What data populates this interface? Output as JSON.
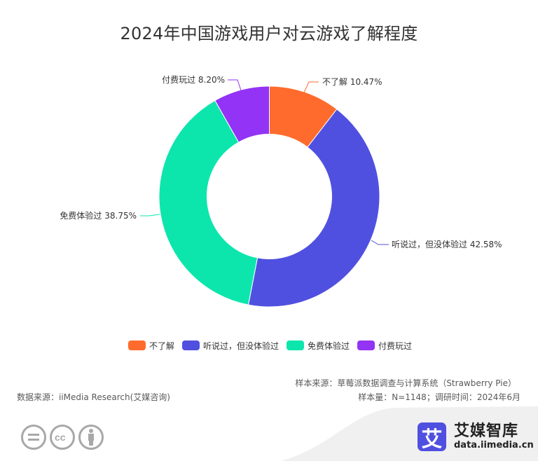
{
  "title": "2024年中国游戏用户对云游戏了解程度",
  "chart_data": {
    "type": "pie",
    "variant": "donut",
    "title": "2024年中国游戏用户对云游戏了解程度",
    "categories": [
      "不了解",
      "听说过，但没体验过",
      "免费体验过",
      "付费玩过"
    ],
    "values": [
      10.47,
      42.58,
      38.75,
      8.2
    ],
    "unit": "%",
    "colors": [
      "#ff6b2c",
      "#5050e0",
      "#0ce6ad",
      "#9333f5"
    ],
    "labels": [
      "不了解 10.47%",
      "听说过，但没体验过 42.58%",
      "免费体验过 38.75%",
      "付费玩过 8.20%"
    ],
    "start_angle": "12 o'clock",
    "direction": "clockwise",
    "legend_position": "bottom"
  },
  "legend": [
    {
      "label": "不了解",
      "color": "#ff6b2c"
    },
    {
      "label": "听说过，但没体验过",
      "color": "#5050e0"
    },
    {
      "label": "免费体验过",
      "color": "#0ce6ad"
    },
    {
      "label": "付费玩过",
      "color": "#9333f5"
    }
  ],
  "footer": {
    "data_source": "数据来源：iiMedia Research(艾媒咨询)",
    "sample_source": "样本来源：草莓派数据调查与计算系统（Strawberry Pie）",
    "sample_info": "样本量：N=1148；调研时间：2024年6月"
  },
  "brand": {
    "logo_char": "艾",
    "name": "艾媒智库",
    "url": "data.iimedia.cn"
  },
  "license_icons": [
    "no-derivatives-icon",
    "cc-icon",
    "attribution-icon"
  ]
}
